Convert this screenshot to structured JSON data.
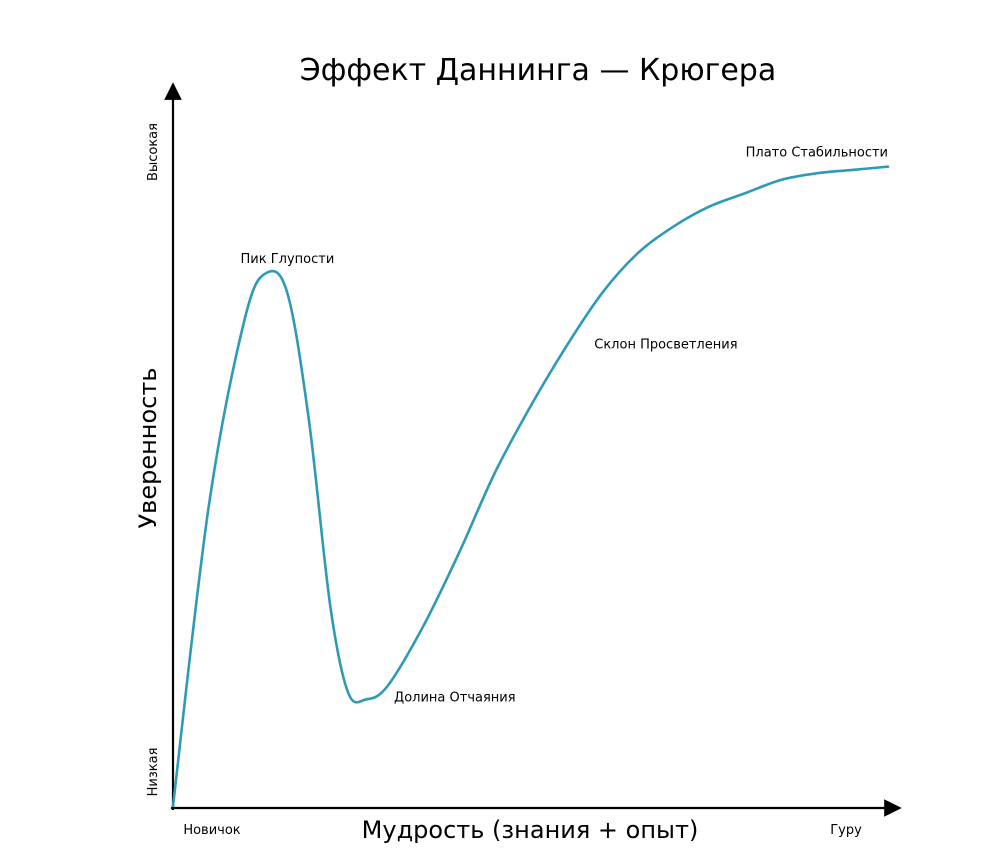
{
  "chart_data": {
    "type": "line",
    "title": "Эффект Даннинга — Крюгера",
    "xlabel": "Мудрость (знания + опыт)",
    "ylabel": "Уверенность",
    "x_ticks": {
      "start": "Новичок",
      "end": "Гуру"
    },
    "y_ticks": {
      "low": "Низкая",
      "high": "Высокая"
    },
    "xlim": [
      0,
      1
    ],
    "ylim": [
      0,
      1
    ],
    "grid": false,
    "curve_color": "#2e9ab5",
    "series": [
      {
        "x": [
          0.0,
          0.05,
          0.1,
          0.13,
          0.16,
          0.19,
          0.22,
          0.245,
          0.27,
          0.3,
          0.35,
          0.4,
          0.45,
          0.5,
          0.55,
          0.6,
          0.65,
          0.7,
          0.75,
          0.8,
          0.85,
          0.9,
          0.95,
          1.0
        ],
        "y": [
          0.0,
          0.45,
          0.73,
          0.8,
          0.77,
          0.58,
          0.3,
          0.17,
          0.16,
          0.18,
          0.27,
          0.38,
          0.5,
          0.6,
          0.69,
          0.77,
          0.83,
          0.87,
          0.9,
          0.92,
          0.94,
          0.95,
          0.955,
          0.96
        ]
      }
    ],
    "annotations": [
      {
        "text": "Пик Глупости",
        "x": 0.16,
        "y": 0.8,
        "placement": "above"
      },
      {
        "text": "Долина Отчаяния",
        "x": 0.27,
        "y": 0.16,
        "placement": "right"
      },
      {
        "text": "Склон Просветления",
        "x": 0.55,
        "y": 0.69,
        "placement": "right"
      },
      {
        "text": "Плато Стабильности",
        "x": 1.0,
        "y": 0.96,
        "placement": "above-left"
      }
    ]
  }
}
